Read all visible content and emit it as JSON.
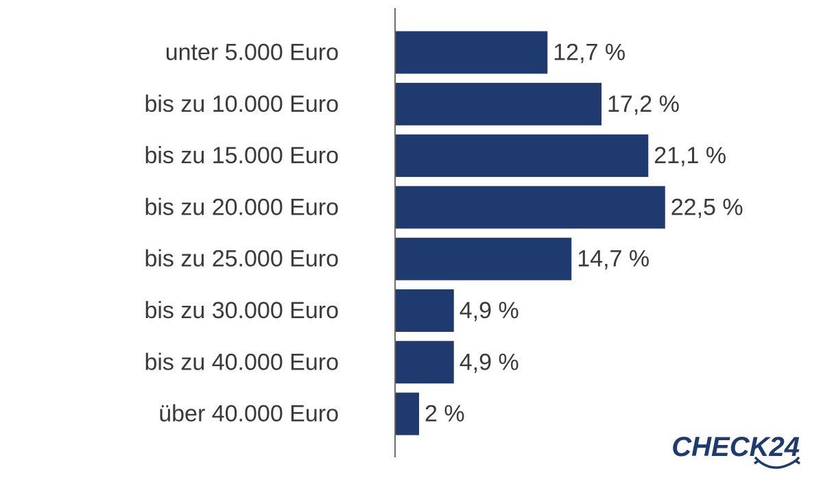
{
  "chart_data": {
    "type": "bar",
    "orientation": "horizontal",
    "categories": [
      "unter 5.000 Euro",
      "bis zu 10.000 Euro",
      "bis zu 15.000 Euro",
      "bis zu 20.000 Euro",
      "bis zu 25.000 Euro",
      "bis zu 30.000 Euro",
      "bis zu 40.000 Euro",
      "über 40.000 Euro"
    ],
    "values": [
      12.7,
      17.2,
      21.1,
      22.5,
      14.7,
      4.9,
      4.9,
      2
    ],
    "value_labels": [
      "12,7 %",
      "17,2 %",
      "21,1 %",
      "22,5 %",
      "14,7 %",
      "4,9 %",
      "4,9 %",
      "2 %"
    ],
    "title": "",
    "xlabel": "",
    "ylabel": "",
    "xlim": [
      0,
      30
    ],
    "grid": false,
    "legend": "none",
    "colors": {
      "bar": "#1e3a6e",
      "axis": "#6b6b6b",
      "text": "#3a3a3a"
    }
  },
  "logo": {
    "text": "CHECK24",
    "color": "#1e3a6e",
    "icon": "check24-swoosh-icon"
  }
}
